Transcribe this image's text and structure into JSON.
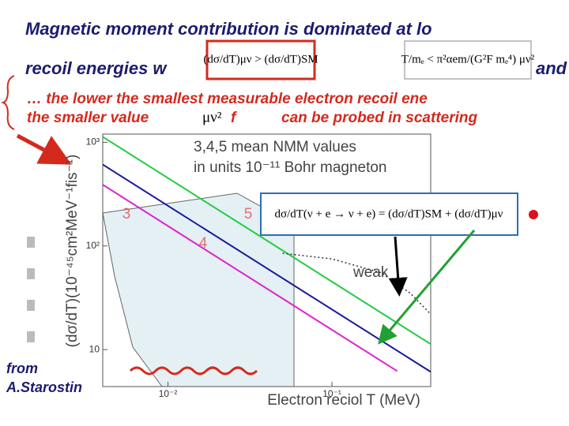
{
  "slide": {
    "title_line1": "Magnetic  moment  contribution  is  dominated  at  lo",
    "title_line2_start": "recoil  energies  w",
    "title_line2_end": "and",
    "bullet_line1": "… the lower the smallest measurable electron recoil ene",
    "bullet_line2a": "the smaller value",
    "bullet_line2b": "f",
    "bullet_line2c": "can be probed in scattering",
    "formulas": [
      "(dσ/dT)μν > (dσ/dT)SM",
      "T/mₑ < π²αem/(G²F mₑ⁴) μν²",
      "μν²",
      "dσ/dT(ν + e → ν + e) = (dσ/dT)SM + (dσ/dT)μν"
    ],
    "credit": [
      "from",
      "A.Starostin"
    ]
  },
  "chart_data": {
    "type": "line",
    "x_label": "Electron reciol T (MeV)",
    "y_label": "(dσ/dT)(10⁻⁴⁵cm²MeV⁻¹fis⁻¹)",
    "annotations": [
      "3,4,5 mean NMM values",
      "in units 10⁻¹¹ Bohr magneton",
      "3",
      "4",
      "5",
      "weak"
    ],
    "log_x": true,
    "log_y": true,
    "xlim": [
      0.004,
      0.4
    ],
    "ylim": [
      4.4,
      1200
    ],
    "xticks": [
      {
        "value": 0.01,
        "label": "10⁻²"
      },
      {
        "value": 0.1,
        "label": "10⁻¹"
      }
    ],
    "yticks": [
      {
        "value": 1000,
        "label": "10³"
      },
      {
        "value": 100,
        "label": "10²"
      },
      10
    ],
    "series": [
      {
        "color": "#22cc44",
        "x": [
          0.004,
          0.4
        ],
        "values": [
          1130,
          11.3
        ]
      },
      {
        "color": "#1a1a99",
        "x": [
          0.004,
          0.4
        ],
        "values": [
          610,
          6.1
        ]
      },
      {
        "color": "#dd22cc",
        "x": [
          0.004,
          0.25
        ],
        "values": [
          390,
          6.2
        ]
      },
      {
        "color": "#333333",
        "dash": true,
        "x": [
          0.05,
          0.1,
          0.2,
          0.3,
          0.4
        ],
        "values": [
          85,
          75,
          55,
          35,
          22
        ]
      }
    ]
  }
}
